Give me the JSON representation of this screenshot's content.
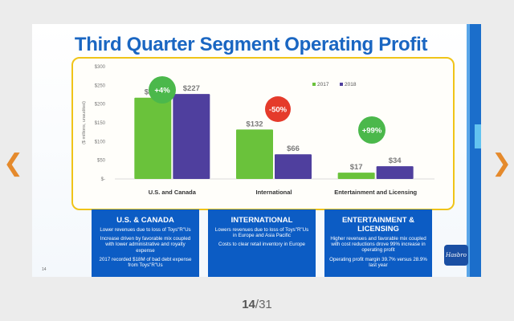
{
  "nav": {
    "prev_icon": "chevron-left-icon",
    "next_icon": "chevron-right-icon"
  },
  "slide": {
    "title": "Third Quarter Segment Operating Profit",
    "page_number": "14",
    "logo_text": "Hasbro",
    "badges": [
      {
        "text": "+4%",
        "color": "#4bb84b"
      },
      {
        "text": "-50%",
        "color": "#e53b2b"
      },
      {
        "text": "+99%",
        "color": "#4bb84b"
      }
    ],
    "panels": [
      {
        "heading": "U.S. & CANADA",
        "lines": [
          "Lower revenues due to loss of Toys\"R\"Us",
          "Increase driven by favorable mix coupled with lower administrative and royalty expense",
          "2017 recorded $18M of bad debt expense from Toys\"R\"Us"
        ]
      },
      {
        "heading": "INTERNATIONAL",
        "lines": [
          "Lowers revenues due to loss of Toys\"R\"Us in Europe and Asia Pacific",
          "Costs to clear retail inventory in Europe"
        ]
      },
      {
        "heading": "ENTERTAINMENT & LICENSING",
        "lines": [
          "Higher revenues and favorable mix coupled with cost reductions drove 99% increase in operating profit",
          "Operating profit margin 39.7% versus 28.9% last year"
        ]
      }
    ]
  },
  "chart_data": {
    "type": "bar",
    "categories": [
      "U.S. and Canada",
      "International",
      "Entertainment and Licensing"
    ],
    "series": [
      {
        "name": "2017",
        "values": [
          217,
          132,
          17
        ],
        "labels": [
          "$217",
          "$132",
          "$17"
        ],
        "color": "#6ac23b"
      },
      {
        "name": "2018",
        "values": [
          227,
          66,
          34
        ],
        "labels": [
          "$227",
          "$66",
          "$34"
        ],
        "color": "#4f3f9e"
      }
    ],
    "ylabel": "($ millions, unaudited)",
    "ylim": [
      0,
      300
    ],
    "yticks": [
      0,
      50,
      100,
      150,
      200,
      250,
      300
    ],
    "ytick_labels": [
      "$-",
      "$50",
      "$100",
      "$150",
      "$200",
      "$250",
      "$300"
    ],
    "legend_position": "top-right",
    "grid": false
  },
  "pager": {
    "current": "14",
    "separator": "/",
    "total": "31"
  }
}
